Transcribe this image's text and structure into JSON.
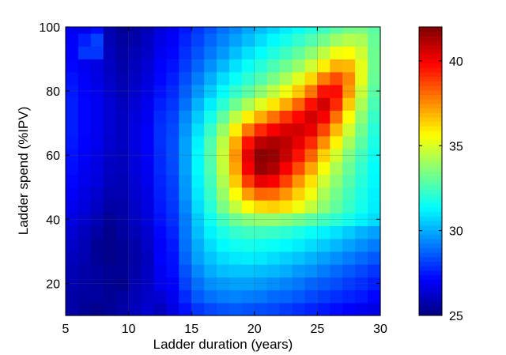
{
  "chart_data": {
    "type": "heatmap",
    "title": "",
    "xlabel": "Ladder duration (years)",
    "ylabel": "Ladder spend (%IPV)",
    "xlim": [
      5,
      30
    ],
    "ylim": [
      10,
      100
    ],
    "x_ticks": [
      "5",
      "10",
      "15",
      "20",
      "25",
      "30"
    ],
    "y_ticks": [
      "20",
      "40",
      "60",
      "80",
      "100"
    ],
    "grid": true,
    "colormap": "jet",
    "colorbar": {
      "range": [
        25,
        42
      ],
      "ticks": [
        "25",
        "30",
        "35",
        "40"
      ]
    },
    "x_centers": [
      5.5,
      6.5,
      7.5,
      8.5,
      9.5,
      10.5,
      11.5,
      12.5,
      13.5,
      14.5,
      15.5,
      16.5,
      17.5,
      18.5,
      19.5,
      20.5,
      21.5,
      22.5,
      23.5,
      24.5,
      25.5,
      26.5,
      27.5,
      28.5,
      29.5
    ],
    "y_centers": [
      12,
      16,
      20,
      24,
      28,
      32,
      36,
      40,
      44,
      48,
      52,
      56,
      60,
      64,
      68,
      72,
      76,
      80,
      84,
      88,
      92,
      96,
      100
    ],
    "z_rows_bottom_to_top": [
      [
        25.6,
        25.4,
        25.2,
        25.4,
        25.6,
        26.0,
        26.3,
        26.0,
        26.6,
        27.4,
        28.0,
        28.3,
        28.5,
        28.6,
        28.5,
        28.4,
        28.3,
        28.1,
        27.9,
        27.7,
        27.5,
        27.3,
        27.1,
        26.9,
        26.7
      ],
      [
        25.6,
        25.5,
        25.5,
        25.3,
        25.5,
        25.9,
        26.2,
        26.4,
        26.8,
        27.8,
        28.6,
        29.0,
        29.2,
        29.3,
        29.2,
        29.1,
        28.9,
        28.8,
        28.6,
        28.3,
        28.1,
        27.9,
        27.7,
        27.5,
        27.2
      ],
      [
        25.8,
        25.6,
        25.5,
        25.3,
        25.2,
        25.8,
        26.1,
        26.8,
        27.1,
        28.2,
        29.0,
        29.5,
        29.7,
        29.8,
        29.8,
        29.7,
        29.5,
        29.3,
        29.1,
        28.8,
        28.6,
        28.4,
        28.1,
        27.9,
        27.6
      ],
      [
        25.9,
        25.7,
        25.5,
        25.3,
        25.4,
        25.7,
        26.1,
        26.9,
        27.3,
        28.5,
        29.4,
        30.0,
        30.3,
        30.4,
        30.4,
        30.3,
        30.2,
        30.0,
        29.7,
        29.5,
        29.2,
        28.9,
        28.6,
        28.3,
        28.0
      ],
      [
        26.0,
        25.8,
        25.4,
        25.2,
        25.3,
        25.6,
        26.0,
        27.1,
        27.4,
        28.8,
        29.8,
        30.4,
        30.8,
        31.0,
        31.1,
        31.0,
        30.8,
        30.6,
        30.4,
        30.1,
        29.8,
        29.5,
        29.2,
        28.9,
        28.6
      ],
      [
        26.2,
        25.9,
        25.3,
        25.2,
        25.4,
        25.7,
        26.2,
        27.0,
        27.5,
        29.0,
        30.0,
        30.8,
        31.3,
        31.6,
        31.7,
        31.6,
        31.5,
        31.3,
        31.1,
        30.8,
        30.5,
        30.2,
        29.8,
        29.5,
        29.2
      ],
      [
        26.4,
        26.0,
        25.6,
        25.2,
        25.5,
        25.9,
        26.3,
        27.2,
        27.7,
        29.1,
        30.3,
        31.2,
        31.8,
        32.2,
        32.4,
        32.4,
        32.3,
        32.1,
        31.8,
        31.5,
        31.2,
        30.9,
        30.5,
        30.1,
        29.8
      ],
      [
        26.6,
        26.3,
        25.9,
        25.4,
        25.6,
        26.1,
        26.5,
        27.4,
        27.9,
        29.2,
        30.5,
        31.6,
        32.5,
        33.2,
        33.6,
        33.8,
        33.8,
        33.6,
        33.3,
        32.9,
        32.5,
        32.1,
        31.7,
        31.2,
        30.8
      ],
      [
        26.8,
        26.5,
        26.1,
        25.6,
        25.7,
        26.2,
        26.6,
        27.5,
        28.0,
        29.4,
        30.8,
        32.0,
        33.4,
        34.6,
        35.6,
        36.2,
        36.4,
        36.1,
        35.4,
        34.6,
        33.7,
        33.0,
        32.3,
        31.7,
        31.1
      ],
      [
        27.0,
        26.6,
        26.3,
        25.8,
        25.8,
        26.3,
        26.7,
        27.6,
        28.1,
        29.6,
        31.0,
        32.3,
        33.9,
        35.6,
        37.3,
        38.2,
        38.1,
        37.4,
        36.4,
        35.4,
        34.2,
        33.3,
        32.5,
        31.8,
        31.2
      ],
      [
        27.2,
        26.8,
        26.5,
        26.0,
        25.9,
        26.4,
        26.8,
        27.7,
        28.2,
        29.7,
        31.2,
        32.5,
        34.3,
        36.5,
        38.9,
        40.3,
        40.0,
        38.8,
        37.4,
        36.1,
        34.8,
        33.7,
        32.8,
        32.0,
        31.3
      ],
      [
        27.3,
        26.9,
        26.6,
        26.1,
        26.0,
        26.5,
        26.9,
        27.8,
        28.3,
        29.8,
        31.3,
        32.7,
        34.6,
        37.1,
        40.0,
        41.6,
        41.2,
        40.0,
        38.6,
        37.1,
        35.5,
        34.2,
        33.1,
        32.2,
        31.4
      ],
      [
        27.4,
        27.0,
        26.7,
        26.2,
        26.0,
        26.5,
        27.0,
        27.8,
        28.4,
        29.8,
        31.3,
        32.8,
        34.7,
        37.4,
        40.3,
        41.8,
        41.6,
        40.8,
        39.6,
        38.2,
        36.4,
        34.9,
        33.5,
        32.5,
        31.6
      ],
      [
        27.5,
        27.1,
        26.8,
        26.3,
        26.1,
        26.6,
        27.0,
        27.9,
        28.4,
        29.8,
        31.2,
        32.7,
        34.5,
        37.0,
        39.6,
        41.0,
        41.3,
        41.0,
        40.3,
        39.2,
        37.5,
        35.8,
        34.1,
        32.9,
        31.8
      ],
      [
        27.6,
        27.2,
        26.9,
        26.4,
        26.1,
        26.6,
        27.0,
        27.9,
        28.3,
        29.6,
        30.9,
        32.3,
        33.9,
        35.9,
        37.9,
        39.2,
        40.0,
        40.5,
        40.6,
        40.2,
        38.7,
        36.8,
        34.8,
        33.3,
        32.0
      ],
      [
        27.6,
        27.2,
        26.9,
        26.4,
        26.1,
        26.5,
        26.9,
        27.8,
        28.2,
        29.4,
        30.5,
        31.7,
        33.0,
        34.5,
        35.9,
        37.0,
        38.0,
        39.0,
        39.8,
        40.6,
        40.0,
        38.0,
        35.6,
        33.7,
        32.3
      ],
      [
        27.6,
        27.2,
        26.9,
        26.4,
        26.0,
        26.4,
        26.8,
        27.6,
        28.0,
        29.0,
        30.1,
        31.1,
        32.1,
        33.2,
        34.2,
        35.1,
        36.0,
        37.0,
        38.2,
        39.6,
        40.6,
        39.2,
        36.5,
        34.2,
        32.6
      ],
      [
        27.5,
        27.1,
        26.8,
        26.3,
        25.9,
        26.3,
        26.7,
        27.4,
        27.8,
        28.7,
        29.6,
        30.5,
        31.4,
        32.2,
        32.9,
        33.7,
        34.5,
        35.4,
        36.5,
        37.9,
        39.6,
        39.7,
        37.3,
        34.7,
        32.9
      ],
      [
        27.4,
        27.0,
        26.7,
        26.2,
        25.8,
        26.1,
        26.5,
        27.2,
        27.6,
        28.4,
        29.2,
        30.0,
        30.8,
        31.5,
        32.1,
        32.7,
        33.4,
        34.2,
        35.1,
        36.3,
        37.8,
        38.6,
        37.6,
        35.2,
        33.1
      ],
      [
        27.2,
        26.9,
        26.6,
        26.1,
        25.7,
        26.0,
        26.4,
        27.1,
        27.4,
        28.1,
        28.8,
        29.5,
        30.2,
        30.9,
        31.5,
        32.0,
        32.6,
        33.2,
        33.9,
        34.8,
        35.9,
        36.9,
        36.8,
        35.2,
        33.2
      ],
      [
        27.1,
        28.0,
        28.0,
        26.0,
        25.6,
        25.9,
        26.2,
        26.9,
        27.2,
        27.9,
        28.5,
        29.1,
        29.7,
        30.3,
        30.9,
        31.4,
        31.9,
        32.4,
        33.0,
        33.7,
        34.5,
        35.4,
        35.6,
        34.8,
        33.2
      ],
      [
        27.0,
        27.6,
        28.2,
        25.9,
        25.5,
        25.7,
        26.1,
        26.7,
        27.0,
        27.7,
        28.2,
        28.8,
        29.3,
        29.8,
        30.3,
        30.8,
        31.3,
        31.7,
        32.2,
        32.7,
        33.3,
        34.0,
        34.4,
        34.2,
        33.1
      ],
      [
        26.9,
        26.8,
        27.3,
        25.8,
        25.4,
        25.6,
        25.9,
        26.5,
        26.9,
        27.5,
        28.0,
        28.5,
        29.0,
        29.4,
        29.9,
        30.3,
        30.7,
        31.1,
        31.5,
        31.9,
        32.4,
        32.9,
        33.3,
        33.4,
        32.9
      ]
    ]
  }
}
